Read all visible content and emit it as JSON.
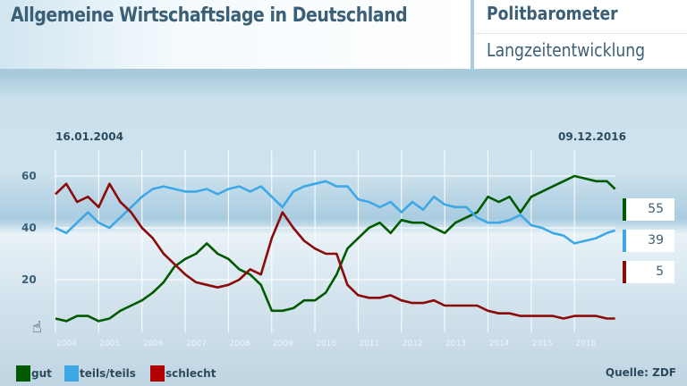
{
  "header": {
    "title": "Allgemeine Wirtschaftslage in Deutschland",
    "brand": "Politbarometer",
    "subtitle": "Langzeitentwicklung"
  },
  "chart_data": {
    "type": "line",
    "start_label": "16.01.2004",
    "end_label": "09.12.2016",
    "xlim": [
      2004,
      2016.94
    ],
    "ylim": [
      0,
      65
    ],
    "y_ticks": [
      "20",
      "40",
      "60"
    ],
    "x_ticks": [
      "2004",
      "2005",
      "2006",
      "2007",
      "2008",
      "2009",
      "2010",
      "2011",
      "2012",
      "2013",
      "2014",
      "2015",
      "2016"
    ],
    "grid": true,
    "x": [
      2004,
      2004.25,
      2004.5,
      2004.75,
      2005,
      2005.25,
      2005.5,
      2005.75,
      2006,
      2006.25,
      2006.5,
      2006.75,
      2007,
      2007.25,
      2007.5,
      2007.75,
      2008,
      2008.25,
      2008.5,
      2008.75,
      2009,
      2009.25,
      2009.5,
      2009.75,
      2010,
      2010.25,
      2010.5,
      2010.75,
      2011,
      2011.25,
      2011.5,
      2011.75,
      2012,
      2012.25,
      2012.5,
      2012.75,
      2013,
      2013.25,
      2013.5,
      2013.75,
      2014,
      2014.25,
      2014.5,
      2014.75,
      2015,
      2015.25,
      2015.5,
      2015.75,
      2016,
      2016.25,
      2016.5,
      2016.75,
      2016.94
    ],
    "series": [
      {
        "name": "gut",
        "color": "#005a00",
        "latest": "55",
        "values": [
          5,
          4,
          6,
          6,
          4,
          5,
          8,
          10,
          12,
          15,
          19,
          25,
          28,
          30,
          34,
          30,
          28,
          24,
          22,
          18,
          8,
          8,
          9,
          12,
          12,
          15,
          22,
          32,
          36,
          40,
          42,
          38,
          43,
          42,
          42,
          40,
          38,
          42,
          44,
          46,
          52,
          50,
          52,
          46,
          52,
          54,
          56,
          58,
          60,
          59,
          58,
          58,
          55
        ]
      },
      {
        "name": "teils/teils",
        "color": "#3ea8e6",
        "latest": "39",
        "values": [
          40,
          38,
          42,
          46,
          42,
          40,
          44,
          48,
          52,
          55,
          56,
          55,
          54,
          54,
          55,
          53,
          55,
          56,
          54,
          56,
          52,
          48,
          54,
          56,
          57,
          58,
          56,
          56,
          51,
          50,
          48,
          50,
          46,
          50,
          47,
          52,
          49,
          48,
          48,
          44,
          42,
          42,
          43,
          45,
          41,
          40,
          38,
          37,
          34,
          35,
          36,
          38,
          39
        ]
      },
      {
        "name": "schlecht",
        "color": "#8b0a0a",
        "swatch": "#b00000",
        "latest": "5",
        "values": [
          53,
          57,
          50,
          52,
          48,
          57,
          50,
          46,
          40,
          36,
          30,
          26,
          22,
          19,
          18,
          17,
          18,
          20,
          24,
          22,
          36,
          46,
          40,
          35,
          32,
          30,
          30,
          18,
          14,
          13,
          13,
          14,
          12,
          11,
          11,
          12,
          10,
          10,
          10,
          10,
          8,
          7,
          7,
          6,
          6,
          6,
          6,
          5,
          6,
          6,
          6,
          5,
          5
        ]
      }
    ]
  },
  "footer": {
    "source": "Quelle: ZDF"
  }
}
